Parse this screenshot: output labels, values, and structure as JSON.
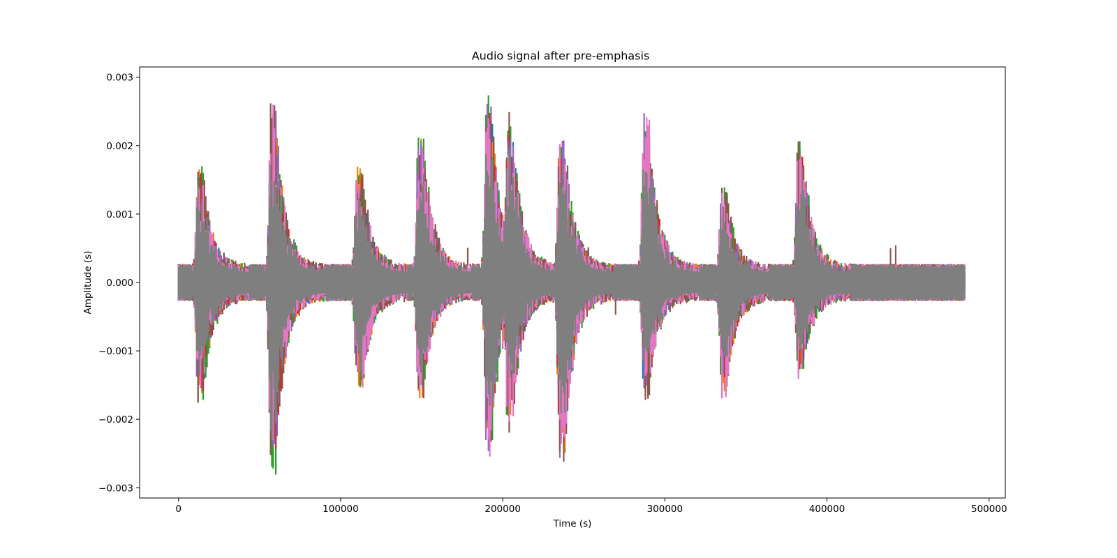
{
  "chart_data": {
    "type": "line",
    "title": "Audio signal after pre-emphasis",
    "xlabel": "Time (s)",
    "ylabel": "Amplitude (s)",
    "xlim": [
      -24000,
      510000
    ],
    "ylim": [
      -0.00315,
      0.00315
    ],
    "x_ticks": [
      0,
      100000,
      200000,
      300000,
      400000,
      500000
    ],
    "x_tick_labels": [
      "0",
      "100000",
      "200000",
      "300000",
      "400000",
      "500000"
    ],
    "y_ticks": [
      -0.003,
      -0.002,
      -0.001,
      0.0,
      0.001,
      0.002,
      0.003
    ],
    "y_tick_labels": [
      "−0.003",
      "−0.002",
      "−0.001",
      "0.000",
      "0.001",
      "0.002",
      "0.003"
    ],
    "grid": false,
    "legend": "none",
    "x_range": [
      0,
      485000
    ],
    "baseline_amplitude": 0.00027,
    "bursts": [
      {
        "center": 15000,
        "peak_pos": 0.00178,
        "peak_neg": -0.00183
      },
      {
        "center": 60000,
        "peak_pos": 0.0027,
        "peak_neg": -0.00285
      },
      {
        "center": 113000,
        "peak_pos": 0.00177,
        "peak_neg": -0.00175
      },
      {
        "center": 151000,
        "peak_pos": 0.00228,
        "peak_neg": -0.00178
      },
      {
        "center": 193000,
        "peak_pos": 0.00285,
        "peak_neg": -0.00263
      },
      {
        "center": 206000,
        "peak_pos": 0.0025,
        "peak_neg": -0.0022
      },
      {
        "center": 238000,
        "peak_pos": 0.00235,
        "peak_neg": -0.00275
      },
      {
        "center": 290000,
        "peak_pos": 0.00265,
        "peak_neg": -0.00175
      },
      {
        "center": 338000,
        "peak_pos": 0.0014,
        "peak_neg": -0.00175
      },
      {
        "center": 385000,
        "peak_pos": 0.00216,
        "peak_neg": -0.00146
      }
    ],
    "series_colors": [
      "#1f77b4",
      "#ff7f0e",
      "#2ca02c",
      "#d62728",
      "#9467bd",
      "#8c564b",
      "#e377c2",
      "#7f7f7f"
    ]
  }
}
